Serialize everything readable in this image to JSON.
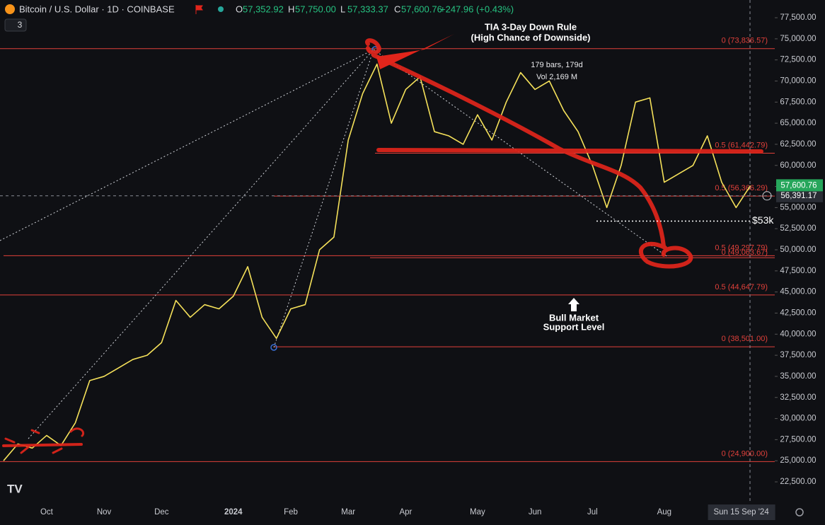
{
  "header": {
    "symbol": "Bitcoin / U.S. Dollar · 1D · COINBASE",
    "indicator_count": "3",
    "ohlc": [
      [
        "O",
        "57,352.92"
      ],
      [
        "H",
        "57,750.00"
      ],
      [
        "L",
        "57,333.37"
      ],
      [
        "C",
        "57,600.76"
      ]
    ],
    "change": "+247.96 (+0.43%)"
  },
  "annotations": {
    "rule_title": [
      "TIA 3-Day Down Rule",
      "(High Chance of Downside)"
    ],
    "measure": [
      "179 bars, 179d",
      "Vol 2,169 M"
    ],
    "support": [
      "Bull Market",
      "Support Level"
    ]
  },
  "chart_data": {
    "type": "line",
    "categories": [
      null,
      null,
      null,
      "Oct",
      null,
      null,
      null,
      "Nov",
      null,
      null,
      null,
      "Dec",
      null,
      null,
      null,
      null,
      "2024",
      null,
      null,
      null,
      "Feb",
      null,
      null,
      null,
      "Mar",
      null,
      null,
      null,
      "Apr",
      null,
      null,
      null,
      null,
      "May",
      null,
      null,
      null,
      "Jun",
      null,
      null,
      null,
      "Jul",
      null,
      null,
      null,
      null,
      "Aug",
      null,
      null,
      null,
      null,
      null,
      "Sun 15 Sep '24"
    ],
    "series": [
      {
        "name": "BTCUSD",
        "color": "#f5e15a",
        "values": [
          25000,
          27000,
          26500,
          28000,
          26800,
          29500,
          34500,
          35000,
          36000,
          37000,
          37500,
          39000,
          44000,
          42000,
          43500,
          43000,
          44500,
          48000,
          42000,
          39500,
          43000,
          43500,
          50000,
          51500,
          63000,
          68500,
          72000,
          65000,
          69000,
          70500,
          64000,
          63500,
          62500,
          66000,
          63000,
          67500,
          71000,
          69000,
          70000,
          66500,
          64000,
          60000,
          55000,
          60000,
          67500,
          68000,
          58000,
          59000,
          60000,
          63500,
          58000,
          55000,
          57600.76
        ]
      }
    ],
    "ylim": [
      20070,
      79600
    ],
    "yticks": [
      {
        "value": 22500,
        "label": "22,500.00"
      },
      {
        "value": 25000,
        "label": "25,000.00"
      },
      {
        "value": 27500,
        "label": "27,500.00"
      },
      {
        "value": 30000,
        "label": "30,000.00"
      },
      {
        "value": 32500,
        "label": "32,500.00"
      },
      {
        "value": 35000,
        "label": "35,000.00"
      },
      {
        "value": 37500,
        "label": "37,500.00"
      },
      {
        "value": 40000,
        "label": "40,000.00"
      },
      {
        "value": 42500,
        "label": "42,500.00"
      },
      {
        "value": 45000,
        "label": "45,000.00"
      },
      {
        "value": 47500,
        "label": "47,500.00"
      },
      {
        "value": 50000,
        "label": "50,000.00"
      },
      {
        "value": 52500,
        "label": "52,500.00"
      },
      {
        "value": 55000,
        "label": "55,000.00"
      },
      {
        "value": 57500,
        "label": "57,500.00"
      },
      {
        "value": 60000,
        "label": "60,000.00"
      },
      {
        "value": 62500,
        "label": "62,500.00"
      },
      {
        "value": 65000,
        "label": "65,000.00"
      },
      {
        "value": 67500,
        "label": "67,500.00"
      },
      {
        "value": 70000,
        "label": "70,000.00"
      },
      {
        "value": 72500,
        "label": "72,500.00"
      },
      {
        "value": 75000,
        "label": "75,000.00"
      },
      {
        "value": 77500,
        "label": "77,500.00"
      }
    ],
    "levels": [
      {
        "value": 73836.57,
        "label": "0 (73,836.57)"
      },
      {
        "value": 61442.79,
        "label": "0.5 (61,442.79)"
      },
      {
        "value": 56366.29,
        "label": "0.5 (56,366.29)"
      },
      {
        "value": 49297.79,
        "label": "0.5 (49,297.79)"
      },
      {
        "value": 49063.67,
        "label": "0 (49,063.67)"
      },
      {
        "value": 44647.79,
        "label": "0.5 (44,647.79)"
      },
      {
        "value": 38501.0,
        "label": "0 (38,501.00)"
      },
      {
        "value": 24900.0,
        "label": "0 (24,900.00)"
      }
    ],
    "level_color": "#e0403a",
    "last_price": {
      "value": 57600.76,
      "label": "57,600.76"
    },
    "crosshair_price": {
      "value": 56391.17,
      "label": "56,391.17"
    },
    "marked_level": {
      "value": 53400,
      "label": "$53k"
    }
  }
}
